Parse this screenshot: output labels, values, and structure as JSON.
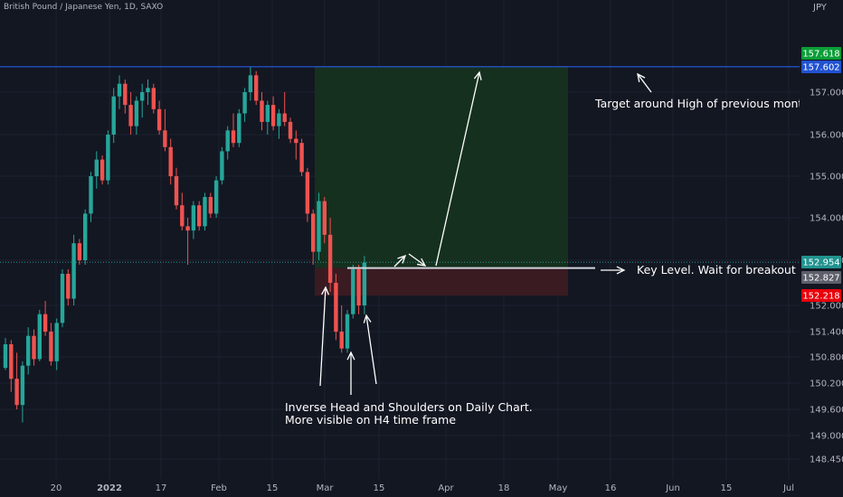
{
  "header": {
    "symbol_title": "British Pound / Japanese Yen, 1D, SAXO",
    "currency": "JPY"
  },
  "colors": {
    "background": "#131722",
    "up_candle": "#26a69a",
    "down_candle": "#ef5350",
    "target_zone": "#16301f",
    "stop_zone": "#3a1b22",
    "resistance_line": "#2962ff",
    "key_level_line": "#d1d4dc",
    "badge_green": "#0b9e37",
    "badge_blue": "#2152d0",
    "badge_gray": "#5d606b",
    "badge_red": "#e8000b",
    "badge_teal": "#21938f"
  },
  "chart_data": {
    "type": "candlestick",
    "title": "British Pound / Japanese Yen, 1D, SAXO",
    "y_axis": {
      "ticks": [
        148.45,
        149.0,
        149.6,
        150.2,
        150.8,
        151.4,
        152.0,
        153.0,
        154.0,
        155.0,
        156.0,
        157.0
      ],
      "tick_labels": [
        "148.450",
        "149.000",
        "149.600",
        "150.200",
        "150.800",
        "151.400",
        "152.000",
        "153.000",
        "154.000",
        "155.000",
        "156.000",
        "157.000"
      ],
      "range": [
        148.2,
        158.4
      ],
      "scale": "log-like"
    },
    "x_axis": {
      "tick_labels": [
        "20",
        "2022",
        "17",
        "Feb",
        "15",
        "Mar",
        "15",
        "Apr",
        "18",
        "May",
        "16",
        "Jun",
        "15",
        "Jul"
      ]
    },
    "price_labels": [
      {
        "value": "157.618",
        "role": "target",
        "color": "#0b9e37"
      },
      {
        "value": "157.602",
        "role": "previous-month-high",
        "color": "#2152d0"
      },
      {
        "value": "152.954",
        "role": "last-price",
        "color": "#21938f"
      },
      {
        "value": "152.827",
        "role": "key-level",
        "color": "#5d606b"
      },
      {
        "value": "152.218",
        "role": "stop",
        "color": "#e8000b"
      }
    ],
    "candles": [
      [
        150.55,
        151.25,
        150.5,
        151.1
      ],
      [
        151.1,
        151.2,
        150.0,
        150.3
      ],
      [
        150.3,
        150.9,
        149.6,
        149.7
      ],
      [
        149.7,
        150.7,
        149.3,
        150.6
      ],
      [
        150.6,
        151.5,
        150.4,
        151.3
      ],
      [
        151.3,
        151.45,
        150.6,
        150.75
      ],
      [
        150.75,
        151.9,
        150.7,
        151.8
      ],
      [
        151.8,
        152.1,
        151.3,
        151.4
      ],
      [
        151.4,
        151.6,
        150.6,
        150.7
      ],
      [
        150.7,
        151.7,
        150.5,
        151.6
      ],
      [
        151.6,
        152.8,
        151.5,
        152.7
      ],
      [
        152.7,
        152.8,
        152.0,
        152.15
      ],
      [
        152.15,
        153.6,
        152.0,
        153.4
      ],
      [
        153.4,
        153.5,
        152.9,
        153.0
      ],
      [
        153.0,
        154.2,
        152.9,
        154.1
      ],
      [
        154.1,
        155.1,
        153.9,
        155.0
      ],
      [
        155.0,
        155.6,
        154.7,
        155.4
      ],
      [
        155.4,
        155.5,
        154.8,
        154.9
      ],
      [
        154.9,
        156.1,
        154.8,
        156.0
      ],
      [
        156.0,
        157.1,
        155.8,
        156.9
      ],
      [
        156.9,
        157.4,
        156.6,
        157.2
      ],
      [
        157.2,
        157.3,
        156.5,
        156.7
      ],
      [
        156.7,
        157.0,
        156.0,
        156.2
      ],
      [
        156.2,
        156.9,
        156.0,
        156.8
      ],
      [
        156.8,
        157.2,
        156.4,
        157.0
      ],
      [
        157.0,
        157.3,
        156.7,
        157.1
      ],
      [
        157.1,
        157.2,
        156.5,
        156.6
      ],
      [
        156.6,
        156.8,
        156.0,
        156.1
      ],
      [
        156.1,
        156.6,
        155.6,
        155.7
      ],
      [
        155.7,
        155.9,
        154.8,
        155.0
      ],
      [
        155.0,
        155.2,
        154.2,
        154.3
      ],
      [
        154.3,
        154.6,
        153.7,
        153.8
      ],
      [
        153.8,
        154.0,
        152.9,
        153.7
      ],
      [
        153.7,
        154.4,
        153.5,
        154.3
      ],
      [
        154.3,
        154.4,
        153.7,
        153.8
      ],
      [
        153.8,
        154.6,
        153.7,
        154.5
      ],
      [
        154.5,
        154.6,
        154.0,
        154.1
      ],
      [
        154.1,
        155.0,
        154.0,
        154.9
      ],
      [
        154.9,
        155.7,
        154.8,
        155.6
      ],
      [
        155.6,
        156.2,
        155.4,
        156.1
      ],
      [
        156.1,
        156.5,
        155.7,
        155.8
      ],
      [
        155.8,
        156.6,
        155.7,
        156.5
      ],
      [
        156.5,
        157.1,
        156.3,
        157.0
      ],
      [
        157.0,
        157.6,
        156.8,
        157.4
      ],
      [
        157.4,
        157.5,
        156.7,
        156.8
      ],
      [
        156.8,
        157.0,
        156.1,
        156.3
      ],
      [
        156.3,
        156.8,
        156.0,
        156.7
      ],
      [
        156.7,
        156.9,
        156.1,
        156.2
      ],
      [
        156.2,
        156.6,
        155.9,
        156.5
      ],
      [
        156.5,
        157.0,
        156.2,
        156.3
      ],
      [
        156.3,
        156.4,
        155.8,
        155.9
      ],
      [
        155.9,
        156.1,
        155.4,
        155.8
      ],
      [
        155.8,
        155.9,
        155.0,
        155.1
      ],
      [
        155.1,
        155.2,
        153.9,
        154.1
      ],
      [
        154.1,
        154.2,
        152.9,
        153.2
      ],
      [
        153.2,
        154.6,
        153.0,
        154.4
      ],
      [
        154.4,
        154.5,
        153.4,
        153.6
      ],
      [
        153.6,
        154.0,
        152.3,
        152.5
      ],
      [
        152.5,
        152.7,
        151.2,
        151.4
      ],
      [
        151.4,
        152.0,
        150.9,
        151.0
      ],
      [
        151.0,
        151.9,
        150.9,
        151.8
      ],
      [
        151.8,
        152.9,
        151.7,
        152.8
      ],
      [
        152.8,
        152.9,
        151.8,
        152.0
      ],
      [
        152.0,
        153.1,
        151.8,
        152.95
      ]
    ]
  },
  "annotations": {
    "target_note": "Target around High of previous month.",
    "key_level_note": "Key Level. Wait for breakout and r",
    "pattern_note_line1": "Inverse Head and Shoulders on Daily Chart.",
    "pattern_note_line2": "More visible on H4 time frame"
  }
}
